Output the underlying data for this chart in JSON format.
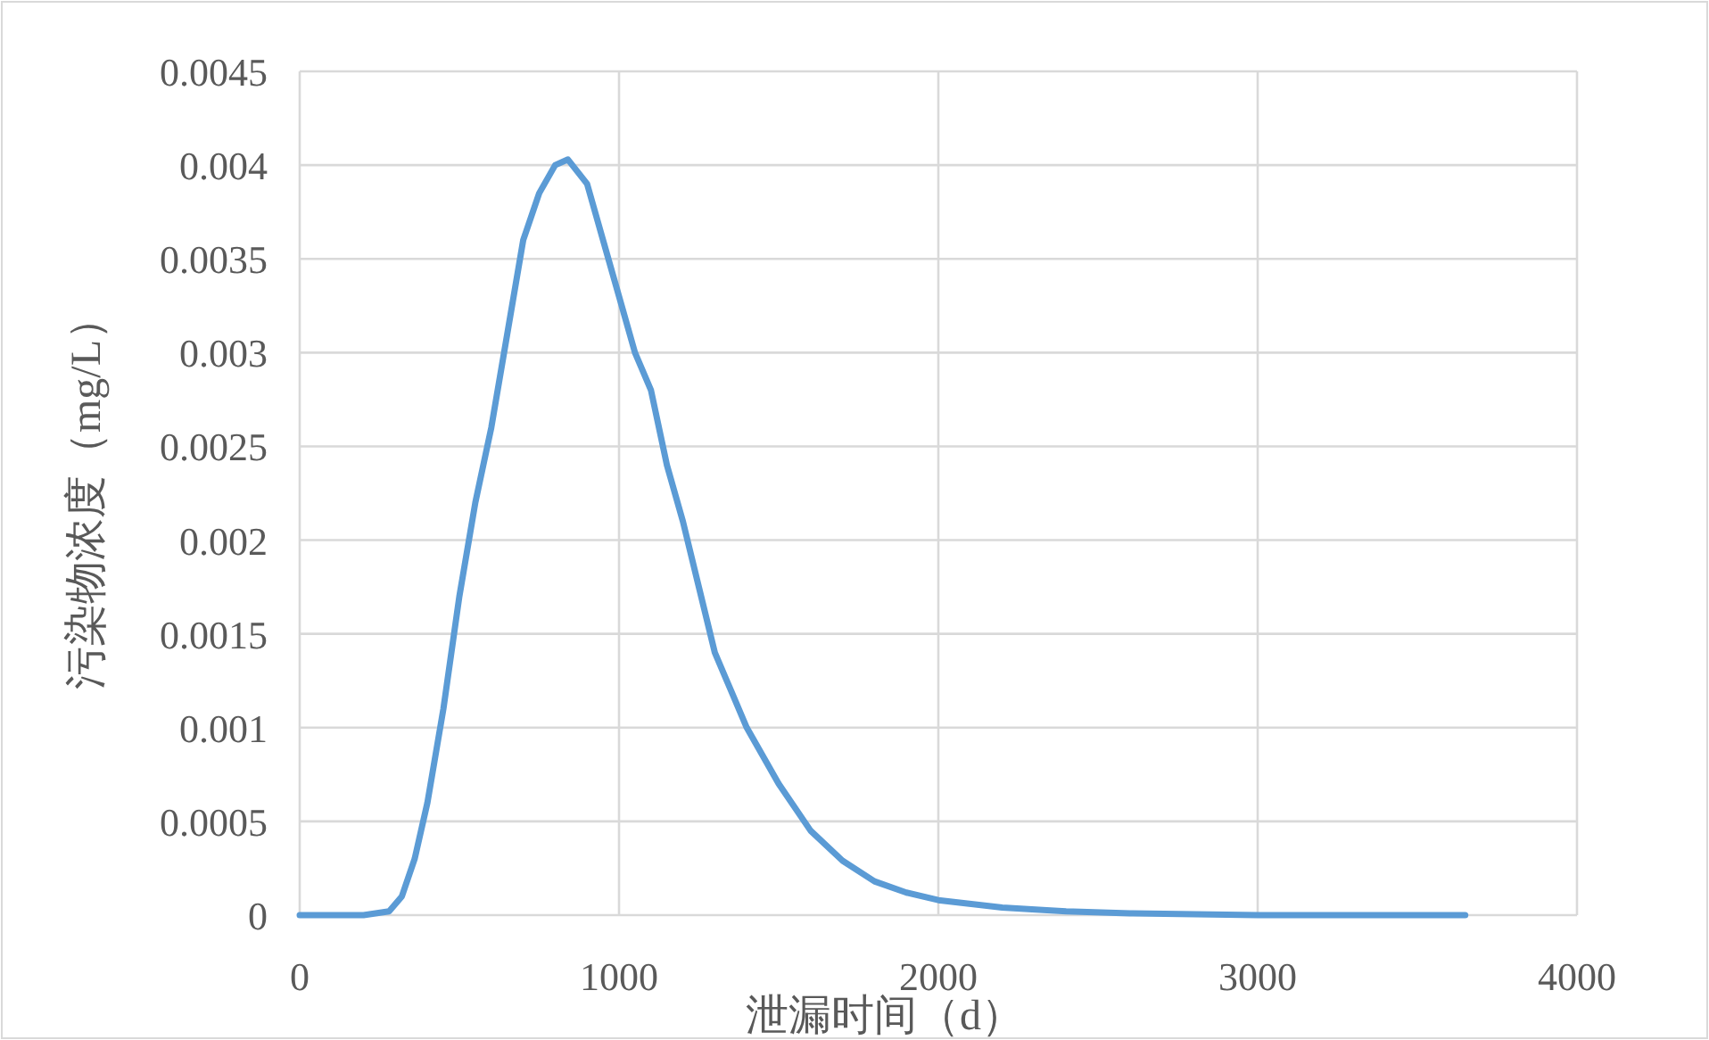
{
  "chart_data": {
    "type": "line",
    "xlabel": "泄漏时间（d）",
    "ylabel": "污染物浓度（mg/L）",
    "xlim": [
      0,
      4000
    ],
    "xticks": [
      0,
      1000,
      2000,
      3000,
      4000
    ],
    "ylim": [
      0,
      0.0045
    ],
    "yticks": [
      0,
      0.0005,
      0.001,
      0.0015,
      0.002,
      0.0025,
      0.003,
      0.0035,
      0.004,
      0.0045
    ],
    "grid": true,
    "marker": "none",
    "line_style": "solid",
    "x": [
      0,
      200,
      280,
      320,
      360,
      400,
      450,
      500,
      550,
      600,
      650,
      700,
      750,
      800,
      840,
      900,
      950,
      1000,
      1050,
      1100,
      1150,
      1200,
      1250,
      1300,
      1350,
      1400,
      1450,
      1500,
      1600,
      1700,
      1800,
      1900,
      2000,
      2200,
      2400,
      2600,
      3000,
      3650
    ],
    "series": [
      {
        "color": "#5b9bd5",
        "values": [
          0,
          0,
          2e-05,
          0.0001,
          0.0003,
          0.0006,
          0.0011,
          0.0017,
          0.0022,
          0.0026,
          0.0031,
          0.0036,
          0.00385,
          0.004,
          0.00403,
          0.0039,
          0.0036,
          0.0033,
          0.003,
          0.0028,
          0.0024,
          0.0021,
          0.00175,
          0.0014,
          0.0012,
          0.001,
          0.00085,
          0.0007,
          0.00045,
          0.00029,
          0.00018,
          0.00012,
          8e-05,
          4e-05,
          2e-05,
          1e-05,
          0,
          0
        ]
      }
    ]
  }
}
